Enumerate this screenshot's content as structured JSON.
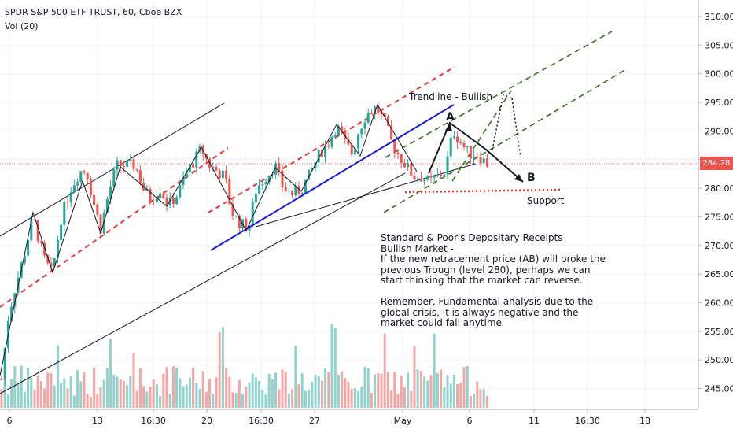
{
  "header": {
    "title": "SPDR S&P 500 ETF TRUST, 60, Cboe BZX",
    "volume_indicator": "Vol (20)"
  },
  "price_tag": "284.28",
  "annotations": {
    "trendline_label": "Trendline - Bullish",
    "point_a": "A",
    "point_b": "B",
    "support_label": "Support",
    "note": "Standard & Poor's Depositary Receipts\nBullish Market -\nIf the new retracement price (AB) will broke the\nprevious Trough (level 280), perhaps we can\nstart thinking that the market can reverse.\n\nRemember, Fundamental analysis due to the\nglobal crisis, it is always negative and the\nmarket could fall anytime"
  },
  "colors": {
    "up": "#26a69a",
    "down": "#ef5350",
    "vol_up": "#8fd3cc",
    "vol_down": "#f5a6a4",
    "channel_red": "#e53935",
    "channel_green": "#3b6e22",
    "trendline_blue": "#1c1cd1",
    "support": "#e53935"
  },
  "chart_data": {
    "type": "candlestick",
    "title": "SPDR S&P 500 ETF TRUST, 60, Cboe BZX",
    "y_axis": {
      "position": "right",
      "range": [
        240,
        313
      ],
      "ticks": [
        "245.00",
        "250.00",
        "255.00",
        "260.00",
        "265.00",
        "270.00",
        "275.00",
        "280.00",
        "285.00",
        "290.00",
        "295.00",
        "300.00",
        "305.00",
        "310.00"
      ]
    },
    "x_axis": {
      "ticks": [
        "6",
        "13",
        "16:30",
        "20",
        "16:30",
        "27",
        "May",
        "6",
        "11",
        "16:30",
        "18"
      ]
    },
    "last_price": 284.28,
    "volume_indicator": "Vol (20)",
    "price_path": [
      [
        0,
        244
      ],
      [
        10,
        257
      ],
      [
        18,
        262
      ],
      [
        30,
        268
      ],
      [
        42,
        275
      ],
      [
        55,
        268
      ],
      [
        66,
        265
      ],
      [
        78,
        275
      ],
      [
        90,
        280
      ],
      [
        102,
        283
      ],
      [
        110,
        283
      ],
      [
        118,
        278
      ],
      [
        128,
        273
      ],
      [
        138,
        279
      ],
      [
        148,
        284
      ],
      [
        162,
        284
      ],
      [
        172,
        284
      ],
      [
        182,
        280
      ],
      [
        192,
        278
      ],
      [
        204,
        280
      ],
      [
        214,
        277
      ],
      [
        226,
        279
      ],
      [
        238,
        283
      ],
      [
        248,
        285
      ],
      [
        256,
        287
      ],
      [
        266,
        284
      ],
      [
        276,
        283
      ],
      [
        286,
        282
      ],
      [
        294,
        276
      ],
      [
        304,
        274
      ],
      [
        316,
        273
      ],
      [
        326,
        280
      ],
      [
        338,
        282
      ],
      [
        350,
        284
      ],
      [
        360,
        280
      ],
      [
        372,
        279
      ],
      [
        384,
        280
      ],
      [
        396,
        283
      ],
      [
        406,
        286
      ],
      [
        418,
        288
      ],
      [
        428,
        291
      ],
      [
        438,
        288
      ],
      [
        448,
        286
      ],
      [
        456,
        290
      ],
      [
        466,
        293
      ],
      [
        478,
        294
      ],
      [
        488,
        292
      ],
      [
        498,
        288
      ],
      [
        506,
        286
      ],
      [
        516,
        284
      ],
      [
        526,
        282
      ],
      [
        536,
        282
      ],
      [
        546,
        281
      ],
      [
        556,
        282
      ],
      [
        566,
        283
      ],
      [
        576,
        290
      ],
      [
        586,
        288
      ],
      [
        596,
        286
      ],
      [
        606,
        286
      ],
      [
        614,
        285
      ],
      [
        622,
        284
      ]
    ],
    "levels": {
      "support": 280,
      "point_a": 291,
      "point_b": 281
    }
  }
}
